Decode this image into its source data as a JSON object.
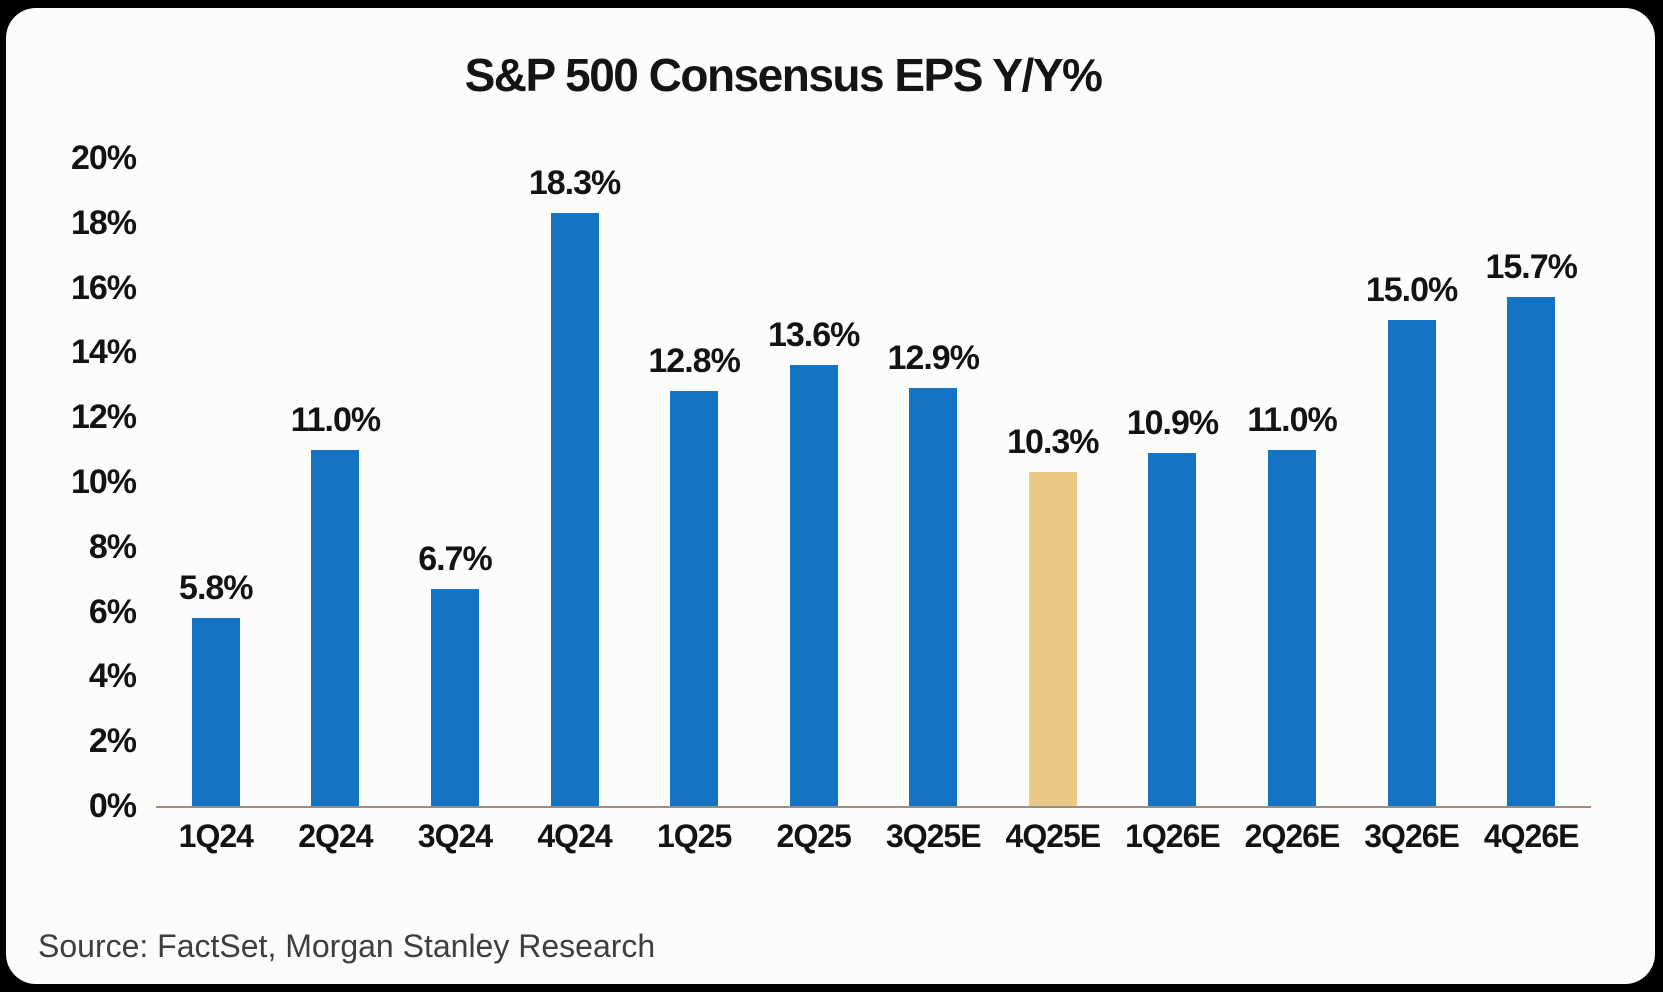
{
  "title": "S&P 500 Consensus EPS Y/Y%",
  "source": "Source: FactSet, Morgan Stanley Research",
  "colors": {
    "bar": "#1573C4",
    "highlight_bar": "#E9C983",
    "card_background": "#FCFCFA",
    "frame_background": "#000000",
    "axis_line": "#9A8C80",
    "text": "#131313",
    "source_text": "#3E3E3E"
  },
  "chart_data": {
    "type": "bar",
    "title": "S&P 500 Consensus EPS Y/Y%",
    "categories": [
      "1Q24",
      "2Q24",
      "3Q24",
      "4Q24",
      "1Q25",
      "2Q25",
      "3Q25E",
      "4Q25E",
      "1Q26E",
      "2Q26E",
      "3Q26E",
      "4Q26E"
    ],
    "values": [
      5.8,
      11.0,
      6.7,
      18.3,
      12.8,
      13.6,
      12.9,
      10.3,
      10.9,
      11.0,
      15.0,
      15.7
    ],
    "value_labels": [
      "5.8%",
      "11.0%",
      "6.7%",
      "18.3%",
      "12.8%",
      "13.6%",
      "12.9%",
      "10.3%",
      "10.9%",
      "11.0%",
      "15.0%",
      "15.7%"
    ],
    "highlight_index": 7,
    "xlabel": "",
    "ylabel": "",
    "ylim": [
      0,
      20
    ],
    "ytick_values": [
      0,
      2,
      4,
      6,
      8,
      10,
      12,
      14,
      16,
      18,
      20
    ],
    "yticks": [
      "0%",
      "2%",
      "4%",
      "6%",
      "8%",
      "10%",
      "12%",
      "14%",
      "16%",
      "18%",
      "20%"
    ],
    "grid": false,
    "legend": false
  }
}
